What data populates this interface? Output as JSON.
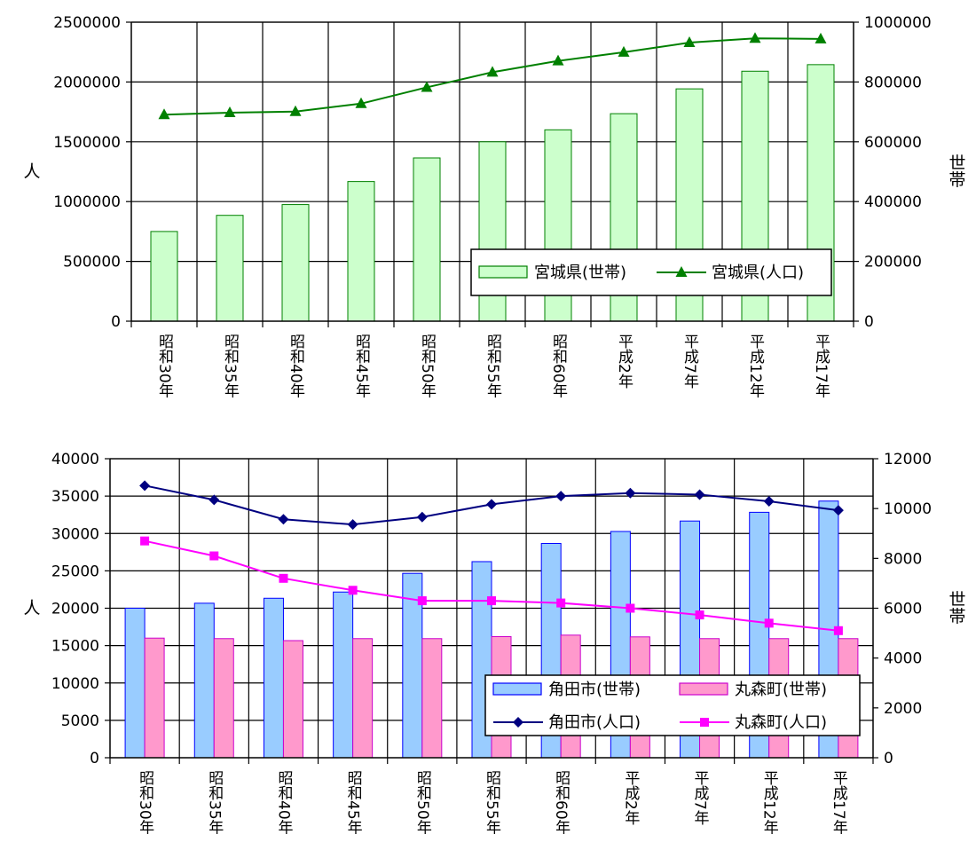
{
  "chart_data": [
    {
      "type": "bar",
      "categories": [
        "昭和30年",
        "昭和35年",
        "昭和40年",
        "昭和45年",
        "昭和50年",
        "昭和55年",
        "昭和60年",
        "平成2年",
        "平成7年",
        "平成12年",
        "平成17年"
      ],
      "ylabel": "人",
      "y2label": "世帯",
      "ylim": [
        0,
        2500000
      ],
      "y2lim": [
        0,
        1000000
      ],
      "yticks": [
        "0",
        "500000",
        "1000000",
        "1500000",
        "2000000",
        "2500000"
      ],
      "y2ticks": [
        "0",
        "200000",
        "400000",
        "600000",
        "800000",
        "1000000"
      ],
      "grid": true,
      "legend_position": "lower-right",
      "series": [
        {
          "name": "宮城県(世帯)",
          "kind": "bar",
          "axis": "right",
          "color": "#ccffcc",
          "stroke": "#008000",
          "values": [
            300000,
            354000,
            390000,
            467000,
            546000,
            600000,
            640000,
            694000,
            777000,
            836000,
            858000
          ]
        },
        {
          "name": "宮城県(人口)",
          "kind": "line",
          "axis": "left",
          "color": "#008000",
          "marker": "triangle",
          "values": [
            1727000,
            1743000,
            1753000,
            1819000,
            1955000,
            2082000,
            2176000,
            2249000,
            2329000,
            2365000,
            2360000
          ]
        }
      ]
    },
    {
      "type": "bar",
      "categories": [
        "昭和30年",
        "昭和35年",
        "昭和40年",
        "昭和45年",
        "昭和50年",
        "昭和55年",
        "昭和60年",
        "平成2年",
        "平成7年",
        "平成12年",
        "平成17年"
      ],
      "ylabel": "人",
      "y2label": "世帯",
      "ylim": [
        0,
        40000
      ],
      "y2lim": [
        0,
        12000
      ],
      "yticks": [
        "0",
        "5000",
        "10000",
        "15000",
        "20000",
        "25000",
        "30000",
        "35000",
        "40000"
      ],
      "y2ticks": [
        "0",
        "2000",
        "4000",
        "6000",
        "8000",
        "10000",
        "12000"
      ],
      "grid": true,
      "legend_position": "lower-right",
      "series": [
        {
          "name": "角田市(世帯)",
          "kind": "bar",
          "axis": "right",
          "color": "#99ccff",
          "stroke": "#0000ff",
          "values": [
            6000,
            6200,
            6400,
            6650,
            7400,
            7870,
            8600,
            9080,
            9500,
            9850,
            10300
          ]
        },
        {
          "name": "丸森町(世帯)",
          "kind": "bar",
          "axis": "right",
          "color": "#ff99cc",
          "stroke": "#cc00cc",
          "values": [
            4800,
            4780,
            4700,
            4780,
            4780,
            4860,
            4920,
            4850,
            4780,
            4780,
            4780
          ]
        },
        {
          "name": "角田市(人口)",
          "kind": "line",
          "axis": "left",
          "color": "#000080",
          "marker": "diamond",
          "values": [
            36400,
            34500,
            31900,
            31200,
            32200,
            33900,
            35000,
            35400,
            35200,
            34300,
            33100
          ]
        },
        {
          "name": "丸森町(人口)",
          "kind": "line",
          "axis": "left",
          "color": "#ff00ff",
          "marker": "square",
          "values": [
            29000,
            27000,
            24000,
            22400,
            21000,
            21000,
            20700,
            20000,
            19100,
            18000,
            17000
          ]
        }
      ]
    }
  ]
}
